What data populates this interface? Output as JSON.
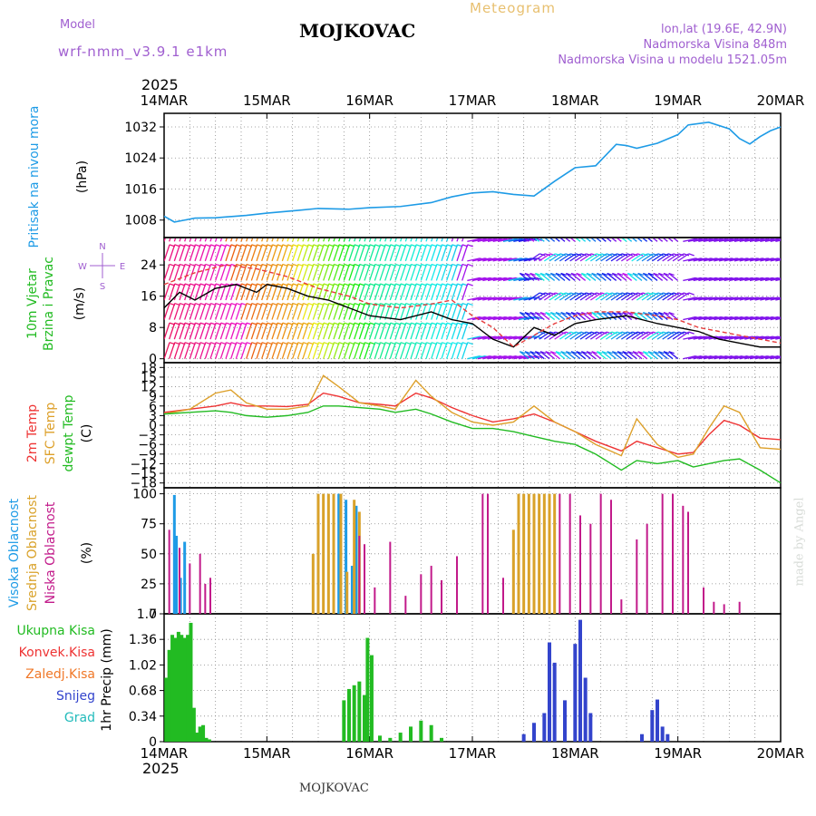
{
  "header": {
    "model_label": "Model",
    "model_name": "wrf-nmm_v3.9.1 e1km",
    "station": "MOJKOVAC",
    "meteogram": "Meteogram",
    "lonlat": "lon,lat (19.6E, 42.9N)",
    "elevation": "Nadmorska Visina 848m",
    "model_elevation": "Nadmorska Visina u modelu 1521.05m",
    "footer_station": "MOJKOVAC",
    "watermark": "made by Angel"
  },
  "colors": {
    "pressure": "#1e9be6",
    "temp2m": "#ee3333",
    "sfc": "#dda02a",
    "dewpt": "#22bb22",
    "high_cloud": "#1e9be6",
    "mid_cloud": "#d9a22a",
    "low_cloud": "#c21a8a",
    "precip_total": "#22bb22",
    "conv": "#ee3333",
    "freezing": "#f07828",
    "snow": "#3344cc",
    "hail": "#22bbbb",
    "purple_text": "#a05fd0"
  },
  "chart_data": {
    "type": "meteogram",
    "year": "2025",
    "date_labels": [
      "14MAR",
      "15MAR",
      "16MAR",
      "17MAR",
      "18MAR",
      "19MAR",
      "20MAR"
    ],
    "panels": [
      {
        "id": "pressure",
        "type": "line",
        "ylabel": [
          "Pritisak na nivou mora",
          "(hPa)"
        ],
        "yticks": [
          1008,
          1016,
          1024,
          1032
        ],
        "ylim": [
          1003.5,
          1035.5
        ],
        "series": [
          {
            "name": "Pritisak na nivou mora",
            "x": [
              0,
              0.1,
              0.2,
              0.3,
              0.5,
              0.8,
              1.0,
              1.3,
              1.5,
              1.8,
              2.0,
              2.3,
              2.6,
              2.8,
              3.0,
              3.2,
              3.4,
              3.6,
              3.8,
              4.0,
              4.2,
              4.4,
              4.5,
              4.6,
              4.8,
              5.0,
              5.1,
              5.3,
              5.5,
              5.6,
              5.7,
              5.8,
              5.9,
              6.0
            ],
            "values": [
              1009,
              1007.5,
              1008,
              1008.5,
              1008.6,
              1009.2,
              1009.8,
              1010.5,
              1011,
              1010.8,
              1011.2,
              1011.5,
              1012.5,
              1014,
              1015,
              1015.3,
              1014.6,
              1014.2,
              1018,
              1021.5,
              1022,
              1027.5,
              1027.2,
              1026.5,
              1027.8,
              1030,
              1032.5,
              1033.2,
              1031.5,
              1029,
              1027.6,
              1029.5,
              1031,
              1032
            ]
          }
        ]
      },
      {
        "id": "wind",
        "type": "barbs",
        "ylabel": [
          "10m Vjetar",
          "Brzina i Pravac",
          "(m/s)"
        ],
        "yticks": [
          0,
          8,
          16,
          24
        ],
        "ylim": [
          -1,
          31
        ],
        "compass": [
          "N",
          "E",
          "W",
          "S"
        ],
        "series": [
          {
            "name": "Vjetar",
            "x": [
              0,
              0.15,
              0.3,
              0.5,
              0.7,
              0.9,
              1.0,
              1.2,
              1.4,
              1.6,
              1.8,
              2.0,
              2.3,
              2.6,
              2.8,
              3.0,
              3.2,
              3.4,
              3.6,
              3.8,
              4.0,
              4.2,
              4.5,
              4.8,
              5.0,
              5.2,
              5.4,
              5.6,
              5.8,
              6.0
            ],
            "values": [
              13,
              17,
              15,
              18,
              19,
              17,
              19,
              18,
              16,
              15,
              13,
              11,
              10,
              12,
              10,
              9,
              5,
              3,
              8,
              6,
              9,
              10,
              11,
              9,
              8,
              7,
              5,
              4,
              3,
              3
            ]
          },
          {
            "name": "Udari",
            "x": [
              0,
              0.3,
              0.6,
              0.9,
              1.2,
              1.5,
              1.8,
              2.0,
              2.3,
              2.6,
              2.8,
              3.0,
              3.2,
              3.4,
              3.6,
              3.8,
              4.0,
              4.2,
              4.5,
              4.8,
              5.0,
              5.2,
              5.4,
              5.6,
              5.8,
              6.0
            ],
            "values": [
              19,
              22,
              24,
              23,
              21,
              18,
              16,
              14,
              13,
              14,
              15,
              11,
              8,
              3,
              6,
              9,
              11,
              12,
              12,
              11,
              10,
              8,
              7,
              6,
              5,
              4
            ]
          }
        ]
      },
      {
        "id": "temperature",
        "type": "line",
        "ylabel": [
          "2m Temp",
          "SFC Temp",
          "dewpt Temp",
          "(C)"
        ],
        "yticks": [
          -18,
          -15,
          -12,
          -9,
          -6,
          -3,
          0,
          3,
          6,
          9,
          12,
          15,
          18
        ],
        "ylim": [
          -19.5,
          19.5
        ],
        "series": [
          {
            "name": "2m Temp",
            "x": [
              0,
              0.25,
              0.5,
              0.65,
              0.8,
              1.0,
              1.2,
              1.4,
              1.55,
              1.7,
              1.9,
              2.1,
              2.25,
              2.45,
              2.6,
              2.8,
              3.0,
              3.2,
              3.4,
              3.6,
              3.8,
              4.0,
              4.2,
              4.45,
              4.6,
              4.8,
              5.0,
              5.15,
              5.3,
              5.45,
              5.6,
              5.8,
              6.0
            ],
            "values": [
              4,
              5,
              6,
              7,
              6,
              6,
              5.8,
              6.5,
              10,
              9,
              7,
              6.5,
              6,
              10,
              8.5,
              5.5,
              3,
              1,
              2,
              3.5,
              1,
              -2,
              -5,
              -8,
              -5,
              -7,
              -9,
              -8.5,
              -3,
              1.5,
              0,
              -4,
              -4.5
            ]
          },
          {
            "name": "SFC Temp",
            "x": [
              0,
              0.25,
              0.5,
              0.65,
              0.8,
              1.0,
              1.2,
              1.4,
              1.55,
              1.7,
              1.9,
              2.1,
              2.25,
              2.45,
              2.6,
              2.8,
              3.0,
              3.2,
              3.4,
              3.6,
              3.8,
              4.0,
              4.2,
              4.45,
              4.6,
              4.8,
              5.0,
              5.15,
              5.3,
              5.45,
              5.6,
              5.8,
              6.0
            ],
            "values": [
              3.5,
              5,
              10,
              11,
              7,
              5,
              5,
              6,
              15.5,
              12,
              7,
              6,
              5,
              14,
              9,
              4,
              1,
              0,
              1,
              6,
              1,
              -2,
              -6,
              -9.5,
              2,
              -6,
              -10,
              -9,
              -1,
              6,
              4,
              -7,
              -7.5
            ]
          },
          {
            "name": "dewpt Temp",
            "x": [
              0,
              0.25,
              0.5,
              0.65,
              0.8,
              1.0,
              1.2,
              1.4,
              1.55,
              1.7,
              1.9,
              2.1,
              2.25,
              2.45,
              2.6,
              2.8,
              3.0,
              3.2,
              3.4,
              3.6,
              3.8,
              4.0,
              4.2,
              4.45,
              4.6,
              4.8,
              5.0,
              5.15,
              5.3,
              5.45,
              5.6,
              5.8,
              6.0
            ],
            "values": [
              3.5,
              4,
              4.5,
              4,
              3,
              2.5,
              3,
              4,
              6,
              6,
              5.5,
              5,
              4,
              5,
              3.5,
              1,
              -1,
              -1,
              -2,
              -3.5,
              -5,
              -6,
              -9,
              -14,
              -11,
              -12,
              -11,
              -13,
              -12,
              -11,
              -10.5,
              -14,
              -18
            ]
          }
        ]
      },
      {
        "id": "cloud",
        "type": "bar",
        "ylabel": [
          "Visoka Oblacnost",
          "Srednja Oblacnost",
          "Niska Oblacnost",
          "(%)"
        ],
        "yticks": [
          0,
          25,
          50,
          75,
          100
        ],
        "ylim": [
          0,
          105
        ],
        "series": [
          {
            "name": "Visoka Oblacnost",
            "x": [
              0.1,
              0.12,
              0.16,
              0.2,
              1.7,
              1.77,
              1.83,
              1.87
            ],
            "values": [
              99,
              65,
              30,
              60,
              100,
              95,
              40,
              90
            ]
          },
          {
            "name": "Srednja Oblacnost",
            "x": [
              1.45,
              1.5,
              1.55,
              1.6,
              1.65,
              1.72,
              1.78,
              1.85,
              1.9,
              3.4,
              3.45,
              3.5,
              3.55,
              3.6,
              3.65,
              3.7,
              3.75,
              3.8
            ],
            "values": [
              50,
              100,
              100,
              100,
              100,
              100,
              35,
              95,
              85,
              70,
              100,
              100,
              100,
              100,
              100,
              100,
              100,
              100
            ]
          },
          {
            "name": "Niska Oblacnost",
            "x": [
              0.05,
              0.15,
              0.25,
              0.35,
              0.4,
              0.45,
              1.9,
              1.95,
              2.05,
              2.2,
              2.35,
              2.5,
              2.6,
              2.7,
              2.85,
              3.1,
              3.15,
              3.3,
              3.85,
              3.95,
              4.05,
              4.15,
              4.25,
              4.35,
              4.45,
              4.6,
              4.7,
              4.85,
              4.95,
              5.05,
              5.1,
              5.25,
              5.35,
              5.45,
              5.6
            ],
            "values": [
              70,
              55,
              42,
              50,
              25,
              30,
              65,
              58,
              22,
              60,
              15,
              33,
              40,
              28,
              48,
              100,
              100,
              30,
              100,
              100,
              82,
              75,
              100,
              95,
              12,
              62,
              75,
              100,
              100,
              90,
              85,
              22,
              10,
              8,
              10
            ]
          }
        ]
      },
      {
        "id": "precip",
        "type": "bar",
        "ylabel": [
          "Ukupna Kisa",
          "Konvek.Kisa",
          "Zaledj.Kisa",
          "Snijeg",
          "Grad",
          "1hr Precip (mm)"
        ],
        "yticks": [
          0,
          0.34,
          0.68,
          1.02,
          1.36,
          1.7
        ],
        "ylim": [
          0,
          1.7
        ],
        "series": [
          {
            "name": "Ukupna Kisa",
            "x": [
              0.02,
              0.05,
              0.08,
              0.11,
              0.14,
              0.17,
              0.2,
              0.23,
              0.26,
              0.29,
              0.32,
              0.35,
              0.38,
              0.41,
              0.44,
              1.75,
              1.8,
              1.85,
              1.9,
              1.95,
              1.98,
              2.02,
              2.1,
              2.2,
              2.3,
              2.4,
              2.5,
              2.6,
              2.7
            ],
            "values": [
              0.85,
              1.22,
              1.42,
              1.38,
              1.46,
              1.42,
              1.38,
              1.42,
              1.58,
              0.45,
              0.12,
              0.2,
              0.22,
              0.05,
              0.03,
              0.55,
              0.7,
              0.75,
              0.8,
              0.62,
              1.38,
              1.15,
              0.08,
              0.05,
              0.12,
              0.2,
              0.28,
              0.22,
              0.05
            ]
          },
          {
            "name": "Snijeg",
            "x": [
              3.5,
              3.6,
              3.7,
              3.75,
              3.8,
              3.9,
              4.0,
              4.05,
              4.1,
              4.15,
              4.65,
              4.75,
              4.8,
              4.85,
              4.9
            ],
            "values": [
              0.1,
              0.25,
              0.38,
              1.32,
              1.05,
              0.55,
              1.3,
              1.62,
              0.85,
              0.38,
              0.1,
              0.42,
              0.56,
              0.2,
              0.1
            ]
          }
        ]
      }
    ]
  }
}
